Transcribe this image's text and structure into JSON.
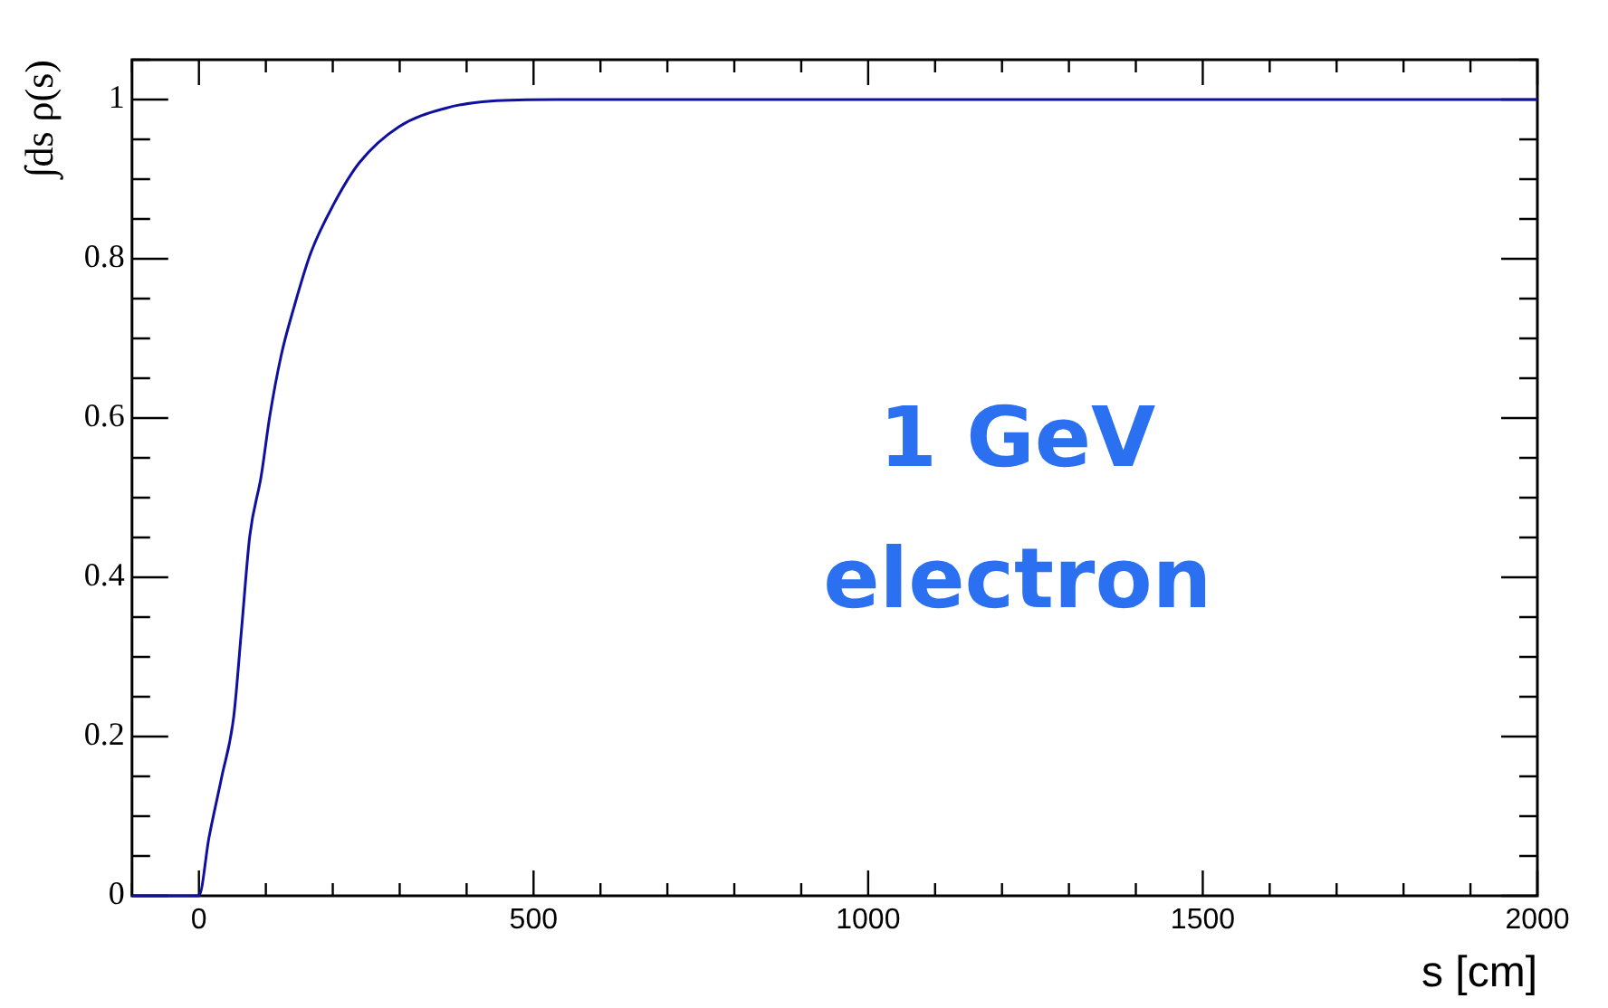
{
  "chart_data": {
    "type": "line",
    "ylabel": "∫ds ρ(s)",
    "xlabel": "s [cm]",
    "annotations": [
      "1 GeV\nelectron"
    ],
    "x": [
      -100,
      0,
      15,
      34,
      52,
      64,
      76,
      93,
      106,
      123,
      142,
      167,
      201,
      240,
      299,
      368,
      436,
      534,
      1000,
      1500,
      2000
    ],
    "series": [
      {
        "color": "#1010a0",
        "values": [
          0,
          0,
          0.073,
          0.149,
          0.225,
          0.338,
          0.452,
          0.527,
          0.603,
          0.679,
          0.739,
          0.807,
          0.868,
          0.921,
          0.966,
          0.989,
          0.998,
          1,
          1,
          1,
          1
        ]
      }
    ],
    "xlim": [
      -100,
      2000
    ],
    "ylim": [
      0,
      1.05
    ],
    "xticks": [
      {
        "value": -100,
        "label": null
      },
      0,
      {
        "value": 100,
        "label": null
      },
      {
        "value": 200,
        "label": null
      },
      {
        "value": 300,
        "label": null
      },
      {
        "value": 400,
        "label": null
      },
      500,
      {
        "value": 600,
        "label": null
      },
      {
        "value": 700,
        "label": null
      },
      {
        "value": 800,
        "label": null
      },
      {
        "value": 900,
        "label": null
      },
      1000,
      {
        "value": 1100,
        "label": null
      },
      {
        "value": 1200,
        "label": null
      },
      {
        "value": 1300,
        "label": null
      },
      {
        "value": 1400,
        "label": null
      },
      1500,
      {
        "value": 1600,
        "label": null
      },
      {
        "value": 1700,
        "label": null
      },
      {
        "value": 1800,
        "label": null
      },
      {
        "value": 1900,
        "label": null
      },
      2000
    ],
    "yticks": [
      0,
      {
        "value": 0.05,
        "label": null
      },
      {
        "value": 0.1,
        "label": null
      },
      {
        "value": 0.15,
        "label": null
      },
      0.2,
      {
        "value": 0.25,
        "label": null
      },
      {
        "value": 0.3,
        "label": null
      },
      {
        "value": 0.35,
        "label": null
      },
      0.4,
      {
        "value": 0.45,
        "label": null
      },
      {
        "value": 0.5,
        "label": null
      },
      {
        "value": 0.55,
        "label": null
      },
      0.6,
      {
        "value": 0.65,
        "label": null
      },
      {
        "value": 0.7,
        "label": null
      },
      {
        "value": 0.75,
        "label": null
      },
      0.8,
      {
        "value": 0.85,
        "label": null
      },
      {
        "value": 0.9,
        "label": null
      },
      {
        "value": 0.95,
        "label": null
      },
      1,
      {
        "value": 1.05,
        "label": null
      }
    ],
    "grid": false,
    "legend": false,
    "marker": "none",
    "line_style": "solid"
  }
}
